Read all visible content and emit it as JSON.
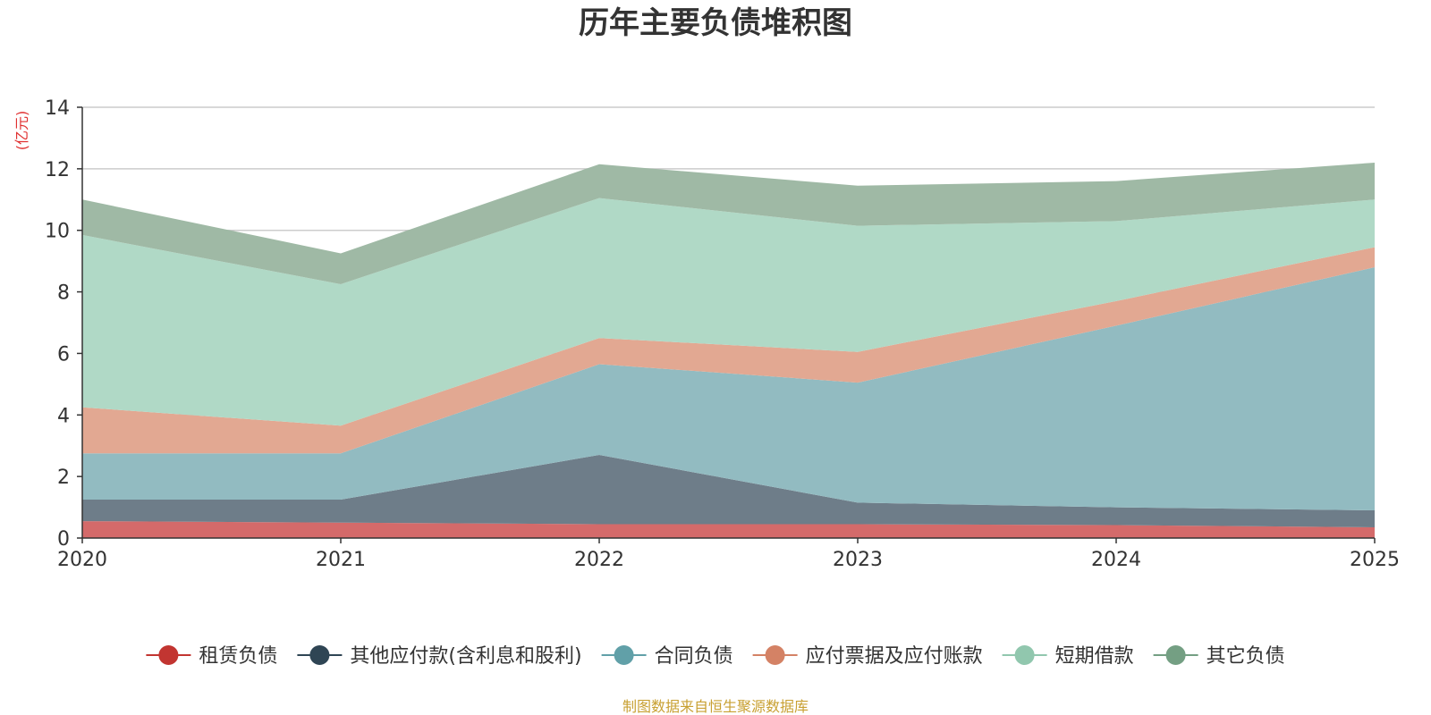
{
  "chart_data": {
    "type": "area",
    "stacked": true,
    "title": "历年主要负债堆积图",
    "ylabel": "(亿元)",
    "xlabel": "",
    "ylim": [
      0,
      14
    ],
    "yticks": [
      0,
      2,
      4,
      6,
      8,
      10,
      12,
      14
    ],
    "categories": [
      "2020",
      "2021",
      "2022",
      "2023",
      "2024",
      "2025"
    ],
    "grid": true,
    "legend_position": "bottom",
    "series": [
      {
        "name": "租赁负债",
        "color": "#d46a6a",
        "marker_color": "#c23531",
        "values": [
          0.55,
          0.5,
          0.45,
          0.45,
          0.42,
          0.35
        ]
      },
      {
        "name": "其他应付款(含利息和股利)",
        "color": "#6e7d89",
        "marker_color": "#2f4554",
        "values": [
          0.7,
          0.75,
          2.25,
          0.7,
          0.58,
          0.55
        ]
      },
      {
        "name": "合同负债",
        "color": "#92bbc1",
        "marker_color": "#61a0a8",
        "values": [
          1.5,
          1.5,
          2.95,
          3.9,
          5.9,
          7.9
        ]
      },
      {
        "name": "应付票据及应付账款",
        "color": "#e2a892",
        "marker_color": "#d48265",
        "values": [
          1.5,
          0.9,
          0.85,
          1.0,
          0.8,
          0.65
        ]
      },
      {
        "name": "短期借款",
        "color": "#b0d9c6",
        "marker_color": "#91c7ae",
        "values": [
          5.6,
          4.6,
          4.55,
          4.1,
          2.6,
          1.55
        ]
      },
      {
        "name": "其它负债",
        "color": "#9fb9a5",
        "marker_color": "#749f83",
        "values": [
          1.15,
          1.0,
          1.1,
          1.3,
          1.3,
          1.2
        ]
      }
    ],
    "source_note": "制图数据来自恒生聚源数据库",
    "colors": {
      "title": "#333333",
      "unit": "#e03030",
      "source": "#c8a032",
      "grid": "#cccccc",
      "axis": "#333333"
    }
  }
}
